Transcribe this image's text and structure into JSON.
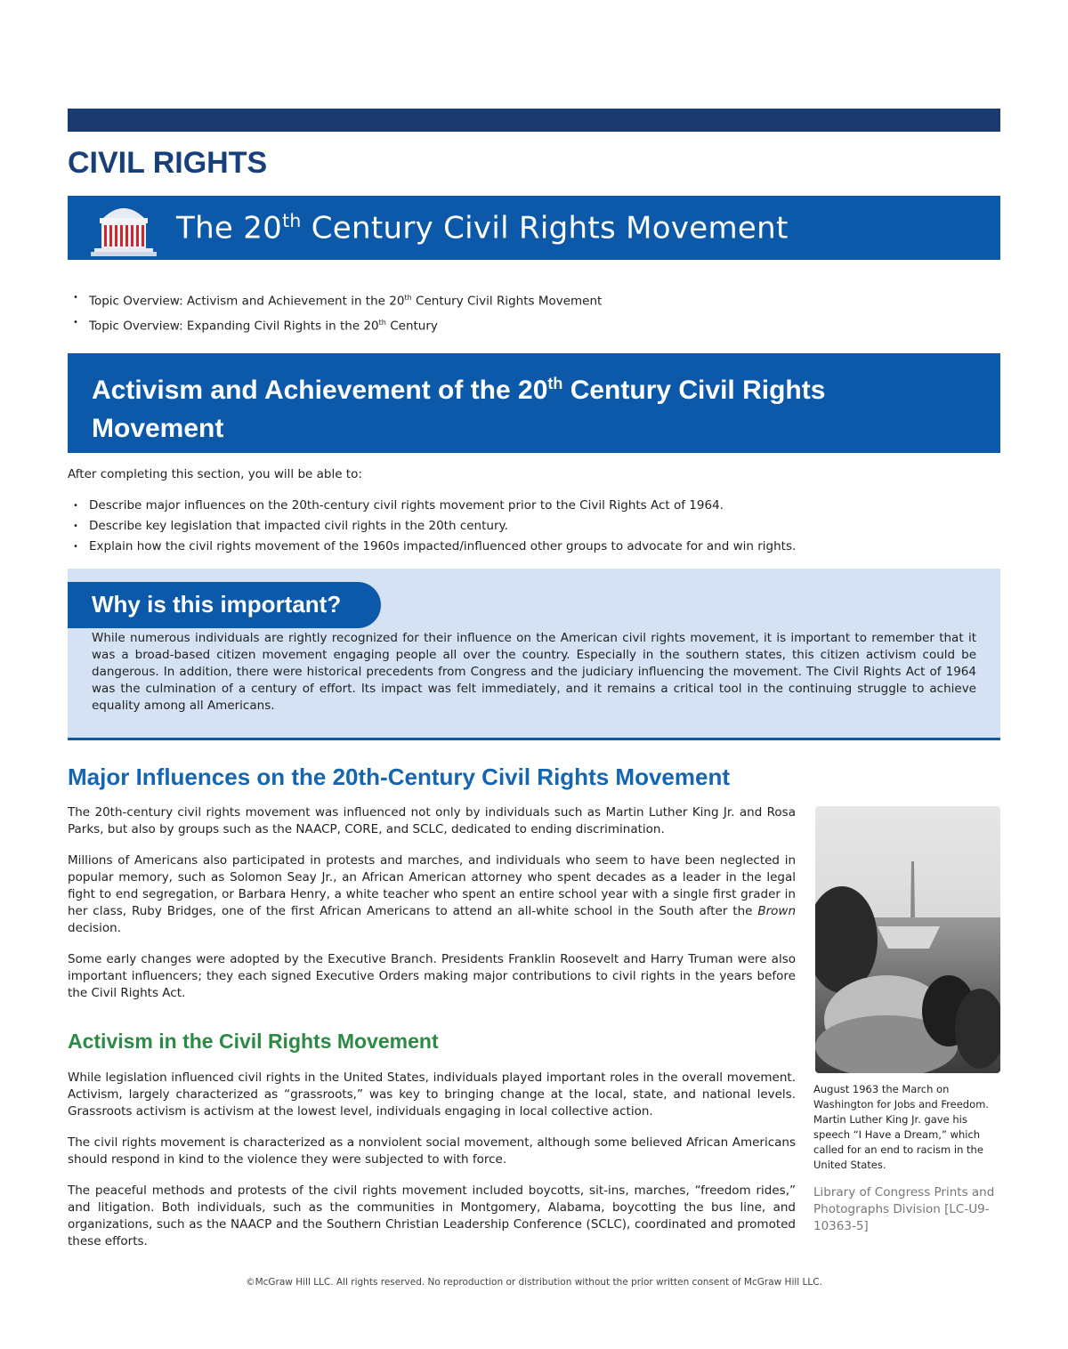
{
  "colors": {
    "navy": "#1b3a70",
    "banner_blue": "#0c59a9",
    "heading_blue": "#1565b1",
    "green": "#2b8a44",
    "light_box": "#d4e2f4"
  },
  "kicker": "CIVIL RIGHTS",
  "banner": {
    "icon": "memorial-building-icon",
    "title_pre": "The 20",
    "title_sup": "th",
    "title_post": " Century Civil Rights Movement"
  },
  "topics": [
    {
      "pre": "Topic Overview: Activism and Achievement in the 20",
      "sup": "th",
      "post": " Century Civil Rights Movement"
    },
    {
      "pre": "Topic Overview: Expanding Civil Rights in the 20",
      "sup": "th",
      "post": " Century"
    }
  ],
  "section": {
    "title_pre": "Activism and Achievement of the 20",
    "title_sup": "th",
    "title_post": " Century Civil Rights Movement"
  },
  "intro": "After completing this section, you will be able to:",
  "objectives": [
    "Describe major influences on the 20th-century civil rights movement prior to the Civil Rights Act of 1964.",
    "Describe key legislation that impacted civil rights in the 20th century.",
    "Explain how the civil rights movement of the 1960s impacted/influenced other groups to advocate for and win rights."
  ],
  "why": {
    "title": "Why is this important?",
    "text": "While numerous individuals are rightly recognized for their influence on the American civil rights movement, it is important to remember that it was a broad-based citizen movement engaging people all over the country. Especially in the southern states, this citizen activism could be dangerous. In addition, there were historical precedents from Congress and the judiciary influencing the movement. The Civil Rights Act of 1964 was the culmination of a century of effort. Its impact was felt immediately, and it remains a critical tool in the continuing struggle to achieve equality among all Americans."
  },
  "major": {
    "heading": "Major Influences on the 20th-Century Civil Rights Movement",
    "p1": "The 20th-century civil rights movement was influenced not only by individuals such as Martin Luther King Jr. and Rosa Parks, but also by groups such as the NAACP, CORE, and SCLC, dedicated to ending discrimination.",
    "p2_pre": "Millions of Americans also participated in protests and marches, and individuals who seem to have been neglected in popular memory, such as Solomon Seay Jr., an African American attorney who spent decades as a leader in the legal fight to end segregation, or Barbara Henry, a white teacher who spent an entire school year with a single first grader in her class, Ruby Bridges, one of the first African Americans to attend an all-white school in the South after the ",
    "p2_em": "Brown",
    "p2_post": " decision.",
    "p3": "Some early changes were adopted by the Executive Branch. Presidents Franklin Roosevelt and Harry Truman were also important influencers; they each signed Executive Orders making major contributions to civil rights in the years before the Civil Rights Act."
  },
  "activism": {
    "heading": "Activism in the Civil Rights Movement",
    "p1": "While legislation influenced civil rights in the United States, individuals played important roles in the overall movement. Activism, largely characterized as “grassroots,” was key to bringing change at the local, state, and national levels. Grassroots activism is activism at the lowest level, individuals engaging in local collective action.",
    "p2": "The civil rights movement is characterized as a nonviolent social movement, although some believed African Americans should respond in kind to the violence they were subjected to with force.",
    "p3": "The peaceful methods and protests of the civil rights movement included boycotts, sit-ins, marches, “freedom rides,” and litigation. Both individuals, such as the communities in Montgomery, Alabama, boycotting the bus line, and organizations, such as the NAACP and the Southern Christian Leadership Conference (SCLC), coordinated and promoted these efforts."
  },
  "photo": {
    "caption": "August 1963 the March on Washington for Jobs and Freedom. Martin Luther King Jr. gave his speech “I Have a Dream,” which called for an end to racism in the United States.",
    "credit": "Library of Congress Prints and Photographs Division [LC-U9-10363-5]"
  },
  "footer": "©McGraw Hill LLC. All rights reserved. No reproduction or distribution without the prior written consent of McGraw Hill LLC."
}
